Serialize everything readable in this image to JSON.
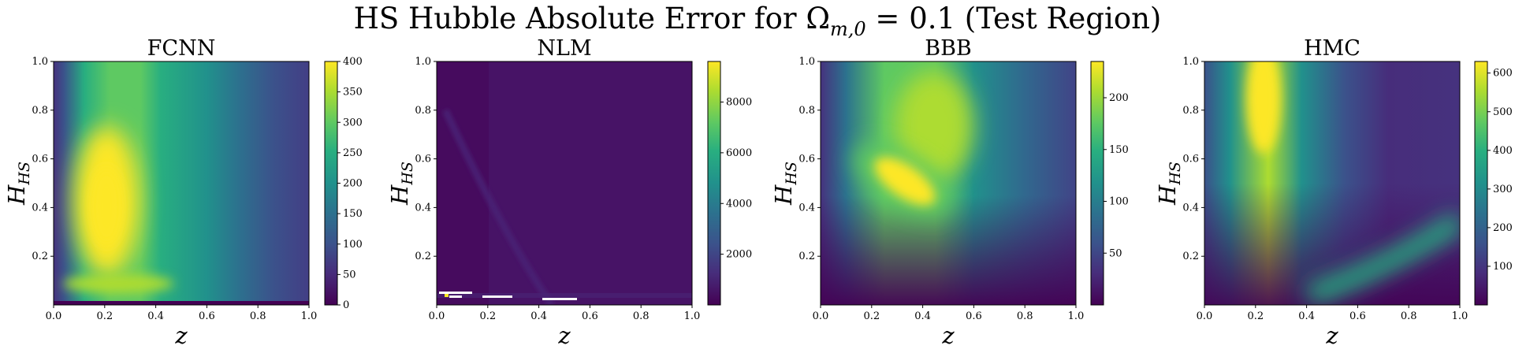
{
  "figure": {
    "title": "HS Hubble Absolute Error for Ω",
    "title_sub": "m,0",
    "title_rest": " = 0.1 (Test Region)"
  },
  "chart_data": [
    {
      "type": "heatmap",
      "title": "FCNN",
      "xlabel": "z",
      "ylabel": "H",
      "ylabel_sub": "HS",
      "xlim": [
        0.0,
        1.0
      ],
      "ylim": [
        0.0,
        1.0
      ],
      "xticks": [
        "0.0",
        "0.2",
        "0.4",
        "0.6",
        "0.8",
        "1.0"
      ],
      "yticks": [
        "0.2",
        "0.4",
        "0.6",
        "0.8",
        "1.0"
      ],
      "colorbar": {
        "min": 0,
        "max": 400,
        "ticks": [
          "0",
          "50",
          "100",
          "150",
          "200",
          "250",
          "300",
          "350",
          "400"
        ]
      },
      "colormap": "viridis",
      "features": [
        {
          "kind": "blob",
          "z": 0.22,
          "h": 0.4,
          "value": 400
        },
        {
          "kind": "band",
          "z_range": [
            0.05,
            0.5
          ],
          "value": 330
        },
        {
          "kind": "edge-low",
          "h": 0.01,
          "value": 0
        }
      ]
    },
    {
      "type": "heatmap",
      "title": "NLM",
      "xlabel": "z",
      "ylabel": "H",
      "ylabel_sub": "HS",
      "xlim": [
        0.0,
        1.0
      ],
      "ylim": [
        0.0,
        1.0
      ],
      "xticks": [
        "0.0",
        "0.2",
        "0.4",
        "0.6",
        "0.8",
        "1.0"
      ],
      "yticks": [
        "0.2",
        "0.4",
        "0.6",
        "0.8",
        "1.0"
      ],
      "colorbar": {
        "min": 0,
        "max": 9600,
        "ticks": [
          "2000",
          "4000",
          "6000",
          "8000"
        ]
      },
      "colormap": "viridis",
      "features": [
        {
          "kind": "background",
          "value": 150
        },
        {
          "kind": "hotspot",
          "z": 0.04,
          "h": 0.06,
          "value": 9600
        },
        {
          "kind": "gap-lines",
          "h": [
            0.03,
            0.04
          ],
          "value": null
        }
      ]
    },
    {
      "type": "heatmap",
      "title": "BBB",
      "xlabel": "z",
      "ylabel": "H",
      "ylabel_sub": "HS",
      "xlim": [
        0.0,
        1.0
      ],
      "ylim": [
        0.0,
        1.0
      ],
      "xticks": [
        "0.0",
        "0.2",
        "0.4",
        "0.6",
        "0.8",
        "1.0"
      ],
      "yticks": [
        "0.2",
        "0.4",
        "0.6",
        "0.8",
        "1.0"
      ],
      "colorbar": {
        "min": 0,
        "max": 235,
        "ticks": [
          "50",
          "100",
          "150",
          "200"
        ]
      },
      "colormap": "viridis",
      "features": [
        {
          "kind": "blob",
          "z": 0.32,
          "h": 0.48,
          "value": 235
        },
        {
          "kind": "band",
          "z_range": [
            0.15,
            0.55
          ],
          "h_range": [
            0.6,
            1.0
          ],
          "value": 210
        }
      ]
    },
    {
      "type": "heatmap",
      "title": "HMC",
      "xlabel": "z",
      "ylabel": "H",
      "ylabel_sub": "HS",
      "xlim": [
        0.0,
        1.0
      ],
      "ylim": [
        0.0,
        1.0
      ],
      "xticks": [
        "0.0",
        "0.2",
        "0.4",
        "0.6",
        "0.8",
        "1.0"
      ],
      "yticks": [
        "0.2",
        "0.4",
        "0.6",
        "0.8",
        "1.0"
      ],
      "colorbar": {
        "min": 0,
        "max": 630,
        "ticks": [
          "100",
          "200",
          "300",
          "400",
          "500",
          "600"
        ]
      },
      "colormap": "viridis",
      "features": [
        {
          "kind": "blob",
          "z": 0.23,
          "h": 0.9,
          "value": 630
        },
        {
          "kind": "streak",
          "z_range": [
            0.5,
            1.0
          ],
          "h_range": [
            0.08,
            0.3
          ],
          "value": 300
        }
      ]
    }
  ]
}
